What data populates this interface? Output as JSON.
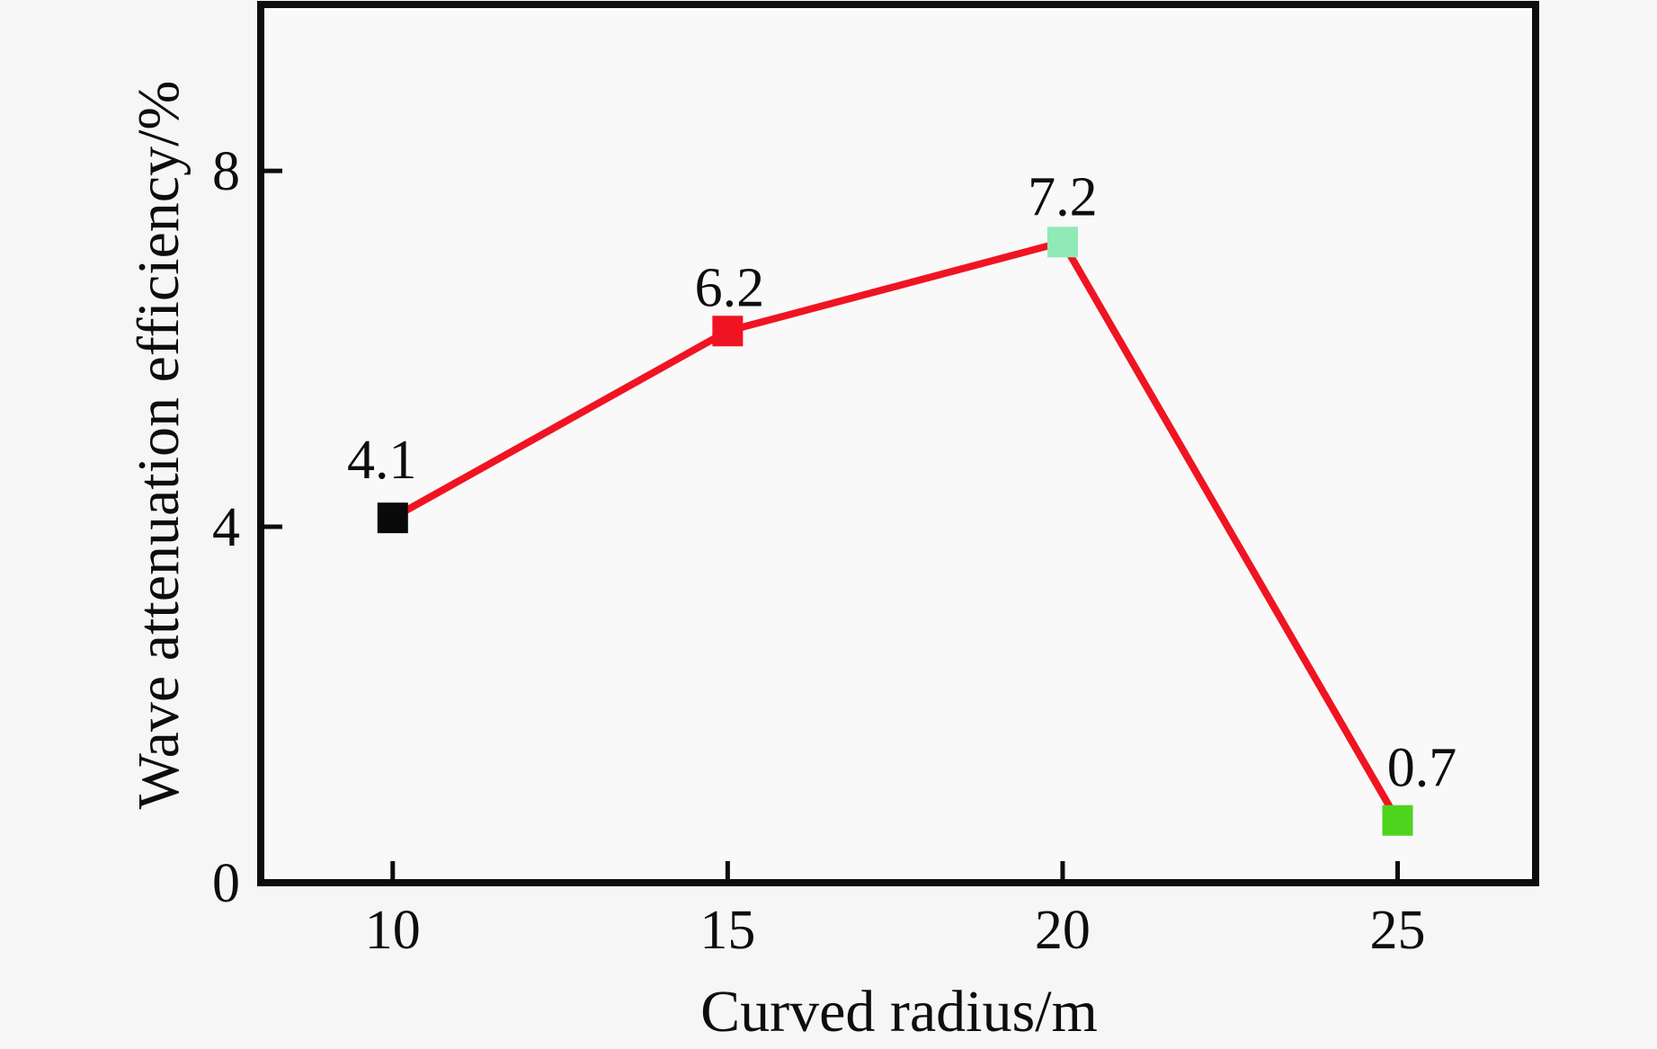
{
  "chart_data": {
    "type": "line",
    "title": "",
    "xlabel": "Curved radius/m",
    "ylabel": "Wave attenuation efficiency/%",
    "x": [
      10,
      15,
      20,
      25
    ],
    "y": [
      4.1,
      6.2,
      7.2,
      0.7
    ],
    "point_labels": [
      "4.1",
      "6.2",
      "7.2",
      "0.7"
    ],
    "x_tick_labels": [
      "10",
      "15",
      "20",
      "25"
    ],
    "y_tick_labels": [
      "0",
      "4",
      "8"
    ],
    "x_ticks": [
      10,
      15,
      20,
      25
    ],
    "y_ticks": [
      0,
      4,
      8
    ],
    "xlim": [
      8.03,
      27.06
    ],
    "ylim": [
      0,
      9.87
    ],
    "grid": false,
    "legend": "none",
    "line_color": "#f01422",
    "marker_colors": [
      "#0a0a0a",
      "#f01422",
      "#8feab5",
      "#4fd41e"
    ],
    "marker_shape": "square"
  },
  "colors": {
    "background": "#f6f6f6",
    "plot_background": "#f9f9f9",
    "axis": "#0d0d0d",
    "text": "#0d0d0d"
  }
}
